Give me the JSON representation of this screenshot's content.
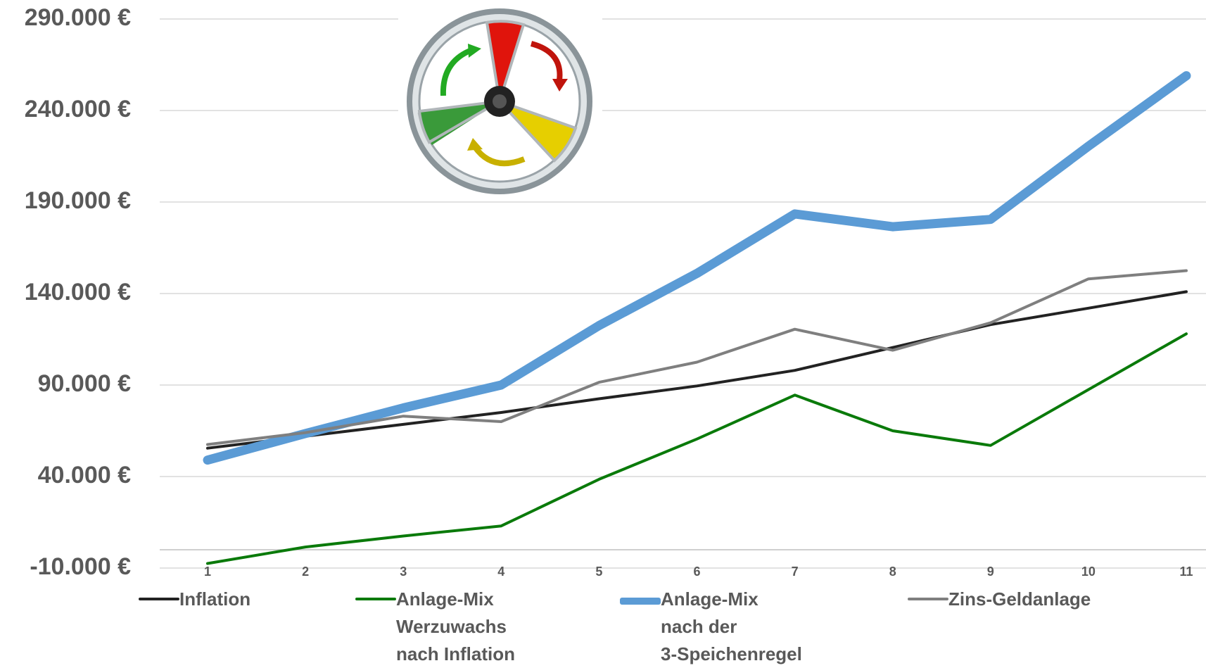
{
  "chart_data": {
    "type": "line",
    "categories": [
      "1",
      "2",
      "3",
      "4",
      "5",
      "6",
      "7",
      "8",
      "9",
      "10",
      "11"
    ],
    "series": [
      {
        "name": "Inflation",
        "color": "#222222",
        "values": [
          55500,
          62000,
          68500,
          75000,
          82500,
          89500,
          98000,
          110500,
          123000,
          132000,
          141000
        ]
      },
      {
        "name": "Anlage-Mix\nWerzuwachs\nnach Inflation",
        "color": "#0a7a0a",
        "values": [
          -7500,
          1500,
          7500,
          13000,
          38500,
          60500,
          84500,
          65000,
          57000,
          87500,
          118000
        ]
      },
      {
        "name": "Anlage-Mix\nnach der\n3-Speichenregel",
        "color": "#5b9bd5",
        "values": [
          49000,
          63500,
          77500,
          90000,
          122500,
          151000,
          183500,
          176500,
          180500,
          220500,
          259000
        ]
      },
      {
        "name": "Zins-Geldanlage",
        "color": "#7f7f7f",
        "values": [
          57500,
          64000,
          73000,
          70000,
          91500,
          102500,
          120500,
          109000,
          124000,
          148000,
          152500
        ]
      }
    ],
    "ylim": [
      -10000,
      290000
    ],
    "yticks": [
      {
        "value": -10000,
        "label": "-10.000 €"
      },
      {
        "value": 40000,
        "label": "40.000 €"
      },
      {
        "value": 90000,
        "label": "90.000 €"
      },
      {
        "value": 140000,
        "label": "140.000 €"
      },
      {
        "value": 190000,
        "label": "190.000 €"
      },
      {
        "value": 240000,
        "label": "240.000 €"
      },
      {
        "value": 290000,
        "label": "290.000 €"
      }
    ],
    "grid": true
  }
}
